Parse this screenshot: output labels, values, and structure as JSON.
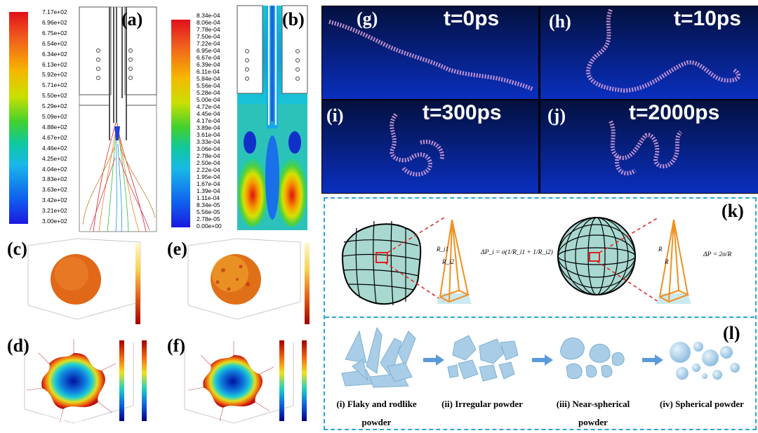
{
  "panel_labels": {
    "a": "(a)",
    "b": "(b)",
    "c": "(c)",
    "d": "(d)",
    "e": "(e)",
    "f": "(f)",
    "g": "(g)",
    "h": "(h)",
    "i": "(i)",
    "j": "(j)",
    "k": "(k)",
    "l": "(l)"
  },
  "colorbar_a": [
    "7.17e+02",
    "6.96e+02",
    "6.75e+02",
    "6.54e+02",
    "6.34e+02",
    "6.13e+02",
    "5.92e+02",
    "5.71e+02",
    "5.50e+02",
    "5.29e+02",
    "5.09e+02",
    "4.88e+02",
    "4.67e+02",
    "4.46e+02",
    "4.25e+02",
    "4.04e+02",
    "3.83e+02",
    "3.63e+02",
    "3.42e+02",
    "3.21e+02",
    "3.00e+02"
  ],
  "colorbar_b": [
    "8.34e-04",
    "8.06e-04",
    "7.78e-04",
    "7.50e-04",
    "7.22e-04",
    "6.95e-04",
    "6.67e-04",
    "6.39e-04",
    "6.11e-04",
    "5.84e-04",
    "5.56e-04",
    "5.28e-04",
    "5.00e-04",
    "4.72e-04",
    "4.45e-04",
    "4.17e-04",
    "3.89e-04",
    "3.61e-04",
    "3.33e-04",
    "3.06e-04",
    "2.78e-04",
    "2.50e-04",
    "2.22e-04",
    "1.95e-04",
    "1.67e-04",
    "1.39e-04",
    "1.11e-04",
    "8.34e-05",
    "5.56e-05",
    "2.78e-05",
    "0.00e+00"
  ],
  "md_times": {
    "g": "t=0ps",
    "h": "t=10ps",
    "i": "t=300ps",
    "j": "t=2000ps"
  },
  "equations": {
    "left": "ΔP_i = σ(1/R_i1 + 1/R_i2)",
    "right": "ΔP = 2σ/R",
    "r1": "R_i1",
    "r2": "R_i2",
    "r": "R"
  },
  "powder_stages": [
    {
      "line1": "(i) Flaky and rodlike",
      "line2": "powder"
    },
    {
      "line1": "(ii) Irregular powder",
      "line2": ""
    },
    {
      "line1": "(iii) Near-spherical",
      "line2": "powder"
    },
    {
      "line1": "(iv) Spherical powder",
      "line2": ""
    }
  ],
  "colors": {
    "md_bg_top": "#04134a",
    "md_bg_bottom": "#0a2fbf",
    "dash": "#2aa7d6",
    "sphere": "#a8d8d0",
    "powder": "#a9cde6"
  }
}
